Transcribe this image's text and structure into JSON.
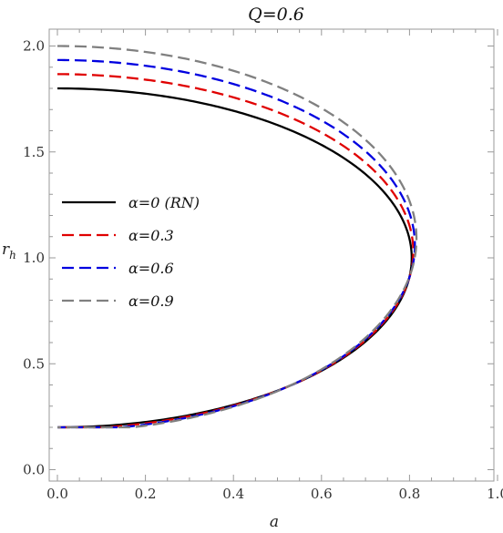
{
  "chart_data": {
    "type": "line",
    "title": "Q=0.6",
    "xlabel": "a",
    "ylabel": "r",
    "ylabel_sub": "h",
    "xlim": [
      0,
      1.0
    ],
    "ylim": [
      0,
      2.0
    ],
    "xticks": [
      "0.0",
      "0.2",
      "0.4",
      "0.6",
      "0.8",
      "1.0"
    ],
    "yticks": [
      "0.0",
      "0.5",
      "1.0",
      "1.5",
      "2.0"
    ],
    "grid": false,
    "legend_position": "middle-left",
    "series": [
      {
        "name": "α=0 (RN)",
        "alpha": 0.0,
        "color": "#000000",
        "dash": "solid"
      },
      {
        "name": "α=0.3",
        "alpha": 0.3,
        "color": "#e00000",
        "dash": "dashed"
      },
      {
        "name": "α=0.6",
        "alpha": 0.6,
        "color": "#0000e0",
        "dash": "dashed"
      },
      {
        "name": "α=0.9",
        "alpha": 0.9,
        "color": "#808080",
        "dash": "dashed"
      }
    ]
  }
}
